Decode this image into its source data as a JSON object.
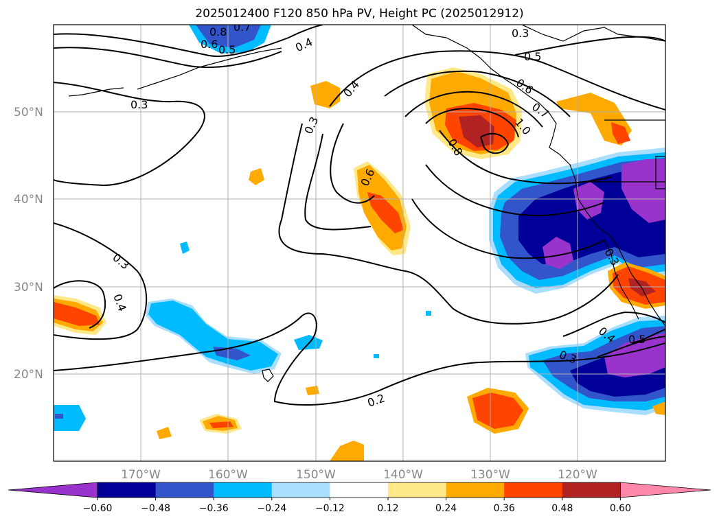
{
  "title": "2025012400 F120 850 hPa PV, Height PC (2025012912)",
  "map": {
    "lat_ticks": [
      "50°N",
      "40°N",
      "30°N",
      "20°N"
    ],
    "lon_ticks": [
      "170°W",
      "160°W",
      "150°W",
      "140°W",
      "130°W",
      "120°W"
    ]
  },
  "contour_labels": [
    "0.8",
    "0.7",
    "0.6",
    "0.5",
    "0.4",
    "0.3",
    "0.3",
    "0.5",
    "0.6",
    "0.7",
    "1.0",
    "0.4",
    "0.3",
    "0.6",
    "0.8",
    "0.3",
    "0.4",
    "0.3",
    "0.2",
    "0.4",
    "0.5",
    "0.3"
  ],
  "colorbar": {
    "ticks": [
      "−0.60",
      "−0.48",
      "−0.36",
      "−0.24",
      "−0.12",
      "0.12",
      "0.24",
      "0.36",
      "0.48",
      "0.60"
    ],
    "colors": [
      "#9933cc",
      "#000099",
      "#3355cc",
      "#00bbff",
      "#aadeff",
      "#ffffff",
      "#ffe888",
      "#ffaa00",
      "#ff4400",
      "#b22222",
      "#ff88aa"
    ]
  }
}
